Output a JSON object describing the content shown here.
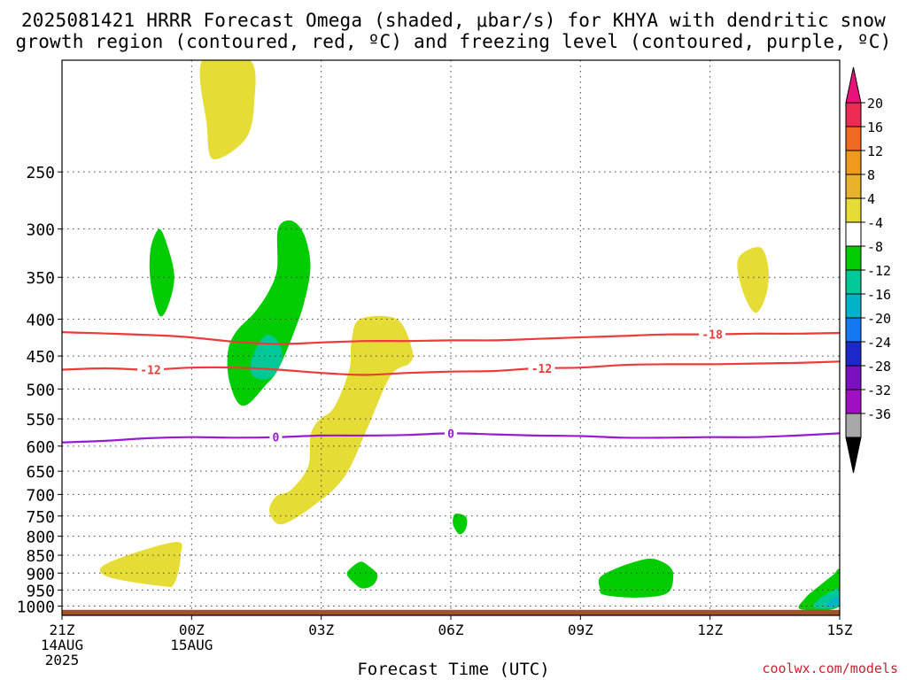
{
  "header": {
    "title_line1": "2025081421 HRRR Forecast Omega (shaded, μbar/s) for KHYA with dendritic snow",
    "title_line2": "growth region (contoured, red, ºC) and freezing level (contoured, purple, ºC)"
  },
  "footer": {
    "xlabel": "Forecast Time (UTC)",
    "credit": "coolwx.com/models"
  },
  "chart_data": {
    "type": "heatmap",
    "title": "2025081421 HRRR Forecast Omega (shaded, μbar/s) for KHYA with dendritic snow growth region (contoured, red, ºC) and freezing level (contoured, purple, ºC)",
    "xlabel": "Forecast Time (UTC)",
    "ylabel": "",
    "x_range_hours": [
      0,
      18
    ],
    "x_start": "2025-08-14 21Z",
    "x_ticks": [
      {
        "hour": 0,
        "lines": [
          "21Z",
          "14AUG",
          "2025"
        ]
      },
      {
        "hour": 3,
        "lines": [
          "00Z",
          "15AUG"
        ]
      },
      {
        "hour": 6,
        "lines": [
          "03Z"
        ]
      },
      {
        "hour": 9,
        "lines": [
          "06Z"
        ]
      },
      {
        "hour": 12,
        "lines": [
          "09Z"
        ]
      },
      {
        "hour": 15,
        "lines": [
          "12Z"
        ]
      },
      {
        "hour": 18,
        "lines": [
          "15Z"
        ]
      }
    ],
    "y_axis": "pressure (hPa), reversed",
    "y_range": [
      1030,
      175
    ],
    "y_ticks": [
      250,
      300,
      350,
      400,
      450,
      500,
      550,
      600,
      650,
      700,
      750,
      800,
      850,
      900,
      950,
      1000
    ],
    "grid": true,
    "colorbar": {
      "labels": [
        "20",
        "16",
        "12",
        "8",
        "4",
        "-4",
        "-8",
        "-12",
        "-16",
        "-20",
        "-24",
        "-28",
        "-32",
        "-36"
      ],
      "colors": [
        "#ee2b55",
        "#ef6a22",
        "#ef9a1c",
        "#e8b22c",
        "#e6dc36",
        "#ffffff",
        "#00cc00",
        "#00c896",
        "#00b4c8",
        "#1478f0",
        "#1e28c8",
        "#7a10c0",
        "#a010c0",
        "#a8a8a8"
      ],
      "top_arrow_color": "#e8127a",
      "bottom_arrow_color": "#000000"
    },
    "omega_regions": [
      {
        "level": "4 to 8",
        "color": "#e6dc36",
        "points": [
          [
            3.25,
            175
          ],
          [
            4.35,
            175
          ],
          [
            4.45,
            200
          ],
          [
            4.25,
            225
          ],
          [
            3.5,
            240
          ],
          [
            3.35,
            215
          ]
        ]
      },
      {
        "level": "4 to 8",
        "color": "#e6dc36",
        "points": [
          [
            15.65,
            330
          ],
          [
            16.15,
            318
          ],
          [
            16.35,
            340
          ],
          [
            16.3,
            370
          ],
          [
            16.05,
            392
          ],
          [
            15.75,
            365
          ]
        ]
      },
      {
        "level": "4 to 8",
        "color": "#e6dc36",
        "points": [
          [
            6.9,
            400
          ],
          [
            7.75,
            400
          ],
          [
            8.1,
            440
          ],
          [
            8.05,
            460
          ],
          [
            7.6,
            480
          ],
          [
            7.05,
            570
          ],
          [
            6.55,
            660
          ],
          [
            5.9,
            720
          ],
          [
            5.1,
            770
          ],
          [
            4.8,
            740
          ],
          [
            4.95,
            705
          ],
          [
            5.3,
            690
          ],
          [
            5.7,
            640
          ],
          [
            5.75,
            580
          ],
          [
            5.95,
            552
          ],
          [
            6.3,
            530
          ],
          [
            6.65,
            470
          ],
          [
            6.7,
            430
          ]
        ]
      },
      {
        "level": "4 to 8",
        "color": "#e6dc36",
        "points": [
          [
            1.05,
            872
          ],
          [
            2.6,
            815
          ],
          [
            2.75,
            850
          ],
          [
            2.6,
            930
          ],
          [
            2.3,
            938
          ],
          [
            1.05,
            910
          ]
        ]
      },
      {
        "level": "-4 to -8",
        "color": "#00cc00",
        "points": [
          [
            2.05,
            320
          ],
          [
            2.25,
            300
          ],
          [
            2.45,
            318
          ],
          [
            2.6,
            350
          ],
          [
            2.45,
            384
          ],
          [
            2.25,
            395
          ],
          [
            2.05,
            355
          ]
        ]
      },
      {
        "level": "-4 to -8",
        "color": "#00cc00",
        "points": [
          [
            5.0,
            300
          ],
          [
            5.3,
            292
          ],
          [
            5.6,
            305
          ],
          [
            5.75,
            338
          ],
          [
            5.6,
            380
          ],
          [
            5.35,
            420
          ],
          [
            5.0,
            470
          ],
          [
            4.7,
            495
          ],
          [
            4.3,
            525
          ],
          [
            4.05,
            520
          ],
          [
            3.85,
            480
          ],
          [
            3.85,
            440
          ],
          [
            4.05,
            415
          ],
          [
            4.45,
            392
          ],
          [
            4.8,
            365
          ],
          [
            4.98,
            340
          ]
        ]
      },
      {
        "level": "-4 to -8",
        "color": "#00cc00",
        "points": [
          [
            9.1,
            745
          ],
          [
            9.35,
            752
          ],
          [
            9.35,
            780
          ],
          [
            9.2,
            795
          ],
          [
            9.05,
            770
          ]
        ]
      },
      {
        "level": "-4 to -8",
        "color": "#00cc00",
        "points": [
          [
            6.65,
            890
          ],
          [
            6.9,
            868
          ],
          [
            7.1,
            880
          ],
          [
            7.3,
            905
          ],
          [
            7.2,
            935
          ],
          [
            6.95,
            945
          ],
          [
            6.75,
            928
          ],
          [
            6.6,
            905
          ]
        ]
      },
      {
        "level": "-4 to -8",
        "color": "#00cc00",
        "points": [
          [
            12.45,
            913
          ],
          [
            12.8,
            888
          ],
          [
            13.35,
            865
          ],
          [
            13.7,
            860
          ],
          [
            14.05,
            880
          ],
          [
            14.15,
            910
          ],
          [
            14.0,
            960
          ],
          [
            13.3,
            973
          ],
          [
            12.55,
            965
          ],
          [
            12.45,
            945
          ]
        ]
      },
      {
        "level": "-4 to -8",
        "color": "#00cc00",
        "points": [
          [
            18.0,
            893
          ],
          [
            18.0,
            1000
          ],
          [
            17.1,
            1010
          ],
          [
            17.2,
            975
          ],
          [
            17.55,
            935
          ],
          [
            17.85,
            905
          ]
        ]
      },
      {
        "level": "-8 to -12",
        "color": "#00c896",
        "points": [
          [
            4.4,
            452
          ],
          [
            4.7,
            422
          ],
          [
            4.98,
            428
          ],
          [
            5.1,
            450
          ],
          [
            4.95,
            475
          ],
          [
            4.7,
            485
          ],
          [
            4.4,
            478
          ]
        ]
      },
      {
        "level": "-8 to -12",
        "color": "#00c896",
        "points": [
          [
            18.0,
            948
          ],
          [
            18.0,
            1000
          ],
          [
            17.4,
            1005
          ],
          [
            17.55,
            975
          ],
          [
            17.8,
            955
          ]
        ]
      },
      {
        "level": "-12 to -16",
        "color": "#00b4c8",
        "points": [
          [
            18.0,
            970
          ],
          [
            18.0,
            998
          ],
          [
            17.7,
            1002
          ],
          [
            17.8,
            980
          ]
        ]
      }
    ],
    "dendritic_contours": [
      {
        "label": "-18",
        "color": "#ee3a3a",
        "label_hour": 15.05,
        "points": [
          [
            0,
            417
          ],
          [
            2.5,
            422
          ],
          [
            4,
            430
          ],
          [
            5,
            433
          ],
          [
            6,
            431
          ],
          [
            7,
            429
          ],
          [
            8,
            429
          ],
          [
            9,
            428
          ],
          [
            10,
            428
          ],
          [
            11,
            426
          ],
          [
            12,
            424
          ],
          [
            13,
            422
          ],
          [
            14,
            420
          ],
          [
            15,
            420
          ],
          [
            16,
            419
          ],
          [
            17,
            419
          ],
          [
            18,
            418
          ]
        ]
      },
      {
        "label": "-12",
        "color": "#ee3a3a",
        "label_hour": 2.05,
        "points": [
          [
            0,
            470
          ],
          [
            1,
            468
          ],
          [
            2,
            470
          ],
          [
            3,
            467
          ],
          [
            4,
            467
          ],
          [
            5,
            470
          ],
          [
            6,
            475
          ],
          [
            7,
            478
          ],
          [
            8,
            475
          ],
          [
            9,
            473
          ],
          [
            10,
            472
          ],
          [
            11,
            468
          ],
          [
            12,
            467
          ],
          [
            13,
            463
          ],
          [
            14,
            462
          ],
          [
            15,
            462
          ],
          [
            16,
            461
          ],
          [
            17,
            460
          ],
          [
            18,
            458
          ]
        ]
      },
      {
        "label": "-12",
        "color": "#ee3a3a",
        "label_hour": 11.1,
        "points": []
      }
    ],
    "freezing_level_contours": [
      {
        "label": "0",
        "color": "#9a1ad0",
        "label_hours": [
          4.95,
          9.0
        ],
        "points": [
          [
            0,
            593
          ],
          [
            1,
            590
          ],
          [
            2,
            585
          ],
          [
            3,
            583
          ],
          [
            4,
            584
          ],
          [
            5,
            583
          ],
          [
            6,
            580
          ],
          [
            7,
            580
          ],
          [
            8,
            579
          ],
          [
            9,
            576
          ],
          [
            10,
            578
          ],
          [
            11,
            580
          ],
          [
            12,
            581
          ],
          [
            13,
            584
          ],
          [
            14,
            584
          ],
          [
            15,
            583
          ],
          [
            16,
            583
          ],
          [
            17,
            580
          ],
          [
            18,
            576
          ]
        ]
      }
    ],
    "ground": {
      "color": "#a0522d",
      "top_hpa": 1012
    }
  }
}
